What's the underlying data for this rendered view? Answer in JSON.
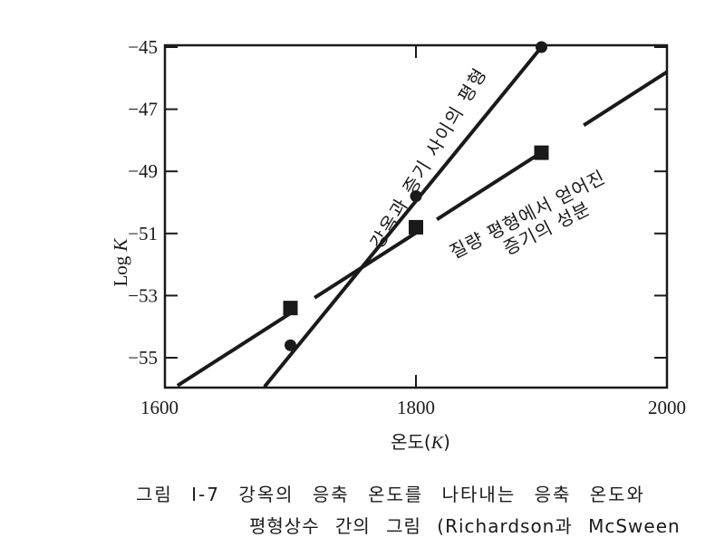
{
  "chart_data": {
    "type": "line",
    "xlabel": "온도(K)",
    "ylabel": "Log K",
    "xlim": [
      1600,
      2000
    ],
    "ylim": [
      -56,
      -45
    ],
    "x_ticks": [
      1600,
      1800,
      2000
    ],
    "y_ticks": [
      -45,
      -47,
      -49,
      -51,
      -53,
      -55
    ],
    "grid": false,
    "series": [
      {
        "name": "강옥과 증기 사이의 평형",
        "marker": "circle",
        "points": [
          [
            1700,
            -54.6
          ],
          [
            1800,
            -49.8
          ],
          [
            1900,
            -45.0
          ]
        ],
        "line_from": [
          1680,
          -55.9
        ],
        "line_to": [
          1900,
          -45.0
        ]
      },
      {
        "name": "질량 평형에서 얻어진 증기의 성분",
        "marker": "square",
        "points": [
          [
            1700,
            -53.4
          ],
          [
            1800,
            -50.8
          ],
          [
            1900,
            -48.4
          ]
        ],
        "line_from": [
          1610,
          -55.9
        ],
        "line_to": [
          2000,
          -45.8
        ]
      }
    ],
    "annotations": [
      {
        "text": "강옥과 증기 사이의 평형"
      },
      {
        "line1": "질량 평형에서 얻어진",
        "line2": "증기의 성분"
      }
    ]
  },
  "caption": {
    "line1": "그림 I-7 강옥의 응축 온도를 나타내는 응축 온도와",
    "line2": "평형상수 간의 그림 (Richardson과 McSween"
  },
  "colors": {
    "ink": "#1a1a1a",
    "background": "#ffffff"
  }
}
